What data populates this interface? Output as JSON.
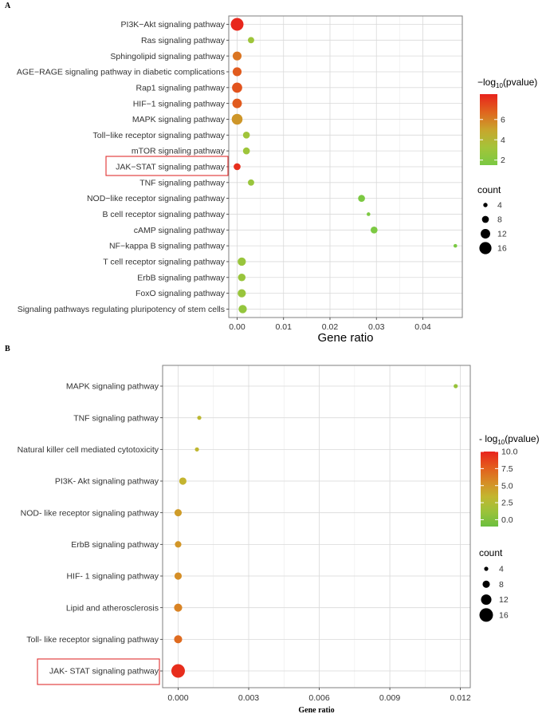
{
  "chart_data": [
    {
      "panel": "A",
      "type": "scatter",
      "xlabel": "Gene ratio",
      "xlim": [
        -0.0018,
        0.0485
      ],
      "xticks": [
        "0.00",
        "0.01",
        "0.02",
        "0.03",
        "0.04"
      ],
      "xtick_values": [
        0,
        0.01,
        0.02,
        0.03,
        0.04
      ],
      "grid": true,
      "legend_placement": "right",
      "highlighted": "JAK−STAT signaling pathway",
      "color_legend": {
        "title_prefix": "−log",
        "title_sub": "10",
        "title_suffix": "(pvalue)",
        "min": 1.5,
        "max": 8.5,
        "ticks": [
          "2",
          "4",
          "6"
        ],
        "tick_values": [
          2,
          4,
          6
        ],
        "colors": [
          "#7ac943",
          "#a4c439",
          "#c9a52c",
          "#e0641e",
          "#e8231c"
        ]
      },
      "size_legend": {
        "title": "count",
        "values": [
          4,
          8,
          12,
          16
        ],
        "labels": [
          "4",
          "8",
          "12",
          "16"
        ]
      },
      "points": [
        {
          "term": "PI3K−Akt signaling pathway",
          "ratio": 0.0,
          "count": 17,
          "neglog10p": 8.4
        },
        {
          "term": "Ras signaling pathway",
          "ratio": 0.003,
          "count": 7,
          "neglog10p": 3.0
        },
        {
          "term": "Sphingolipid signaling pathway",
          "ratio": 0.0,
          "count": 11,
          "neglog10p": 6.3
        },
        {
          "term": "AGE−RAGE signaling pathway in diabetic complications",
          "ratio": 0.0,
          "count": 11,
          "neglog10p": 7.0
        },
        {
          "term": "Rap1 signaling pathway",
          "ratio": 0.0,
          "count": 13,
          "neglog10p": 7.2
        },
        {
          "term": "HIF−1 signaling pathway",
          "ratio": 0.0,
          "count": 12,
          "neglog10p": 7.0
        },
        {
          "term": "MAPK signaling pathway",
          "ratio": 0.0,
          "count": 14,
          "neglog10p": 5.4
        },
        {
          "term": "Toll−like receptor signaling pathway",
          "ratio": 0.002,
          "count": 8,
          "neglog10p": 3.1
        },
        {
          "term": "mTOR signaling pathway",
          "ratio": 0.002,
          "count": 8,
          "neglog10p": 3.0
        },
        {
          "term": "JAK−STAT signaling pathway",
          "ratio": 0.0,
          "count": 8,
          "neglog10p": 8.2
        },
        {
          "term": "TNF signaling pathway",
          "ratio": 0.003,
          "count": 7,
          "neglog10p": 2.8
        },
        {
          "term": "NOD−like receptor signaling pathway",
          "ratio": 0.0268,
          "count": 8,
          "neglog10p": 1.6
        },
        {
          "term": "B cell receptor signaling pathway",
          "ratio": 0.0283,
          "count": 3,
          "neglog10p": 1.6
        },
        {
          "term": "cAMP signaling pathway",
          "ratio": 0.0295,
          "count": 8,
          "neglog10p": 1.6
        },
        {
          "term": "NF−kappa B signaling pathway",
          "ratio": 0.047,
          "count": 3,
          "neglog10p": 1.5
        },
        {
          "term": "T cell receptor signaling pathway",
          "ratio": 0.001,
          "count": 10,
          "neglog10p": 2.8
        },
        {
          "term": "ErbB signaling pathway",
          "ratio": 0.001,
          "count": 9,
          "neglog10p": 2.8
        },
        {
          "term": "FoxO signaling pathway",
          "ratio": 0.001,
          "count": 10,
          "neglog10p": 2.8
        },
        {
          "term": "Signaling pathways regulating pluripotency of stem cells",
          "ratio": 0.0012,
          "count": 10,
          "neglog10p": 2.6
        }
      ]
    },
    {
      "panel": "B",
      "type": "scatter",
      "xlabel": "Gene ratio",
      "xlim": [
        -0.00066,
        0.01242
      ],
      "xticks": [
        "0.000",
        "0.003",
        "0.006",
        "0.009",
        "0.012"
      ],
      "xtick_values": [
        0,
        0.003,
        0.006,
        0.009,
        0.012
      ],
      "grid": true,
      "legend_placement": "right",
      "highlighted": "JAK- STAT signaling pathway",
      "color_legend": {
        "title_prefix": "- log",
        "title_sub": "10",
        "title_suffix": "(pvalue)",
        "min": -1.0,
        "max": 10.0,
        "ticks": [
          "10.0",
          "7.5",
          "5.0",
          "2.5",
          "0.0"
        ],
        "tick_values": [
          10,
          7.5,
          5,
          2.5,
          0
        ],
        "colors": [
          "#6bbf3f",
          "#9bc23a",
          "#c3b62f",
          "#d78a25",
          "#e45a1d",
          "#e8231c"
        ]
      },
      "size_legend": {
        "title": "count",
        "values": [
          4,
          8,
          12,
          16
        ],
        "labels": [
          "4",
          "8",
          "12",
          "16"
        ]
      },
      "points": [
        {
          "term": "MAPK signaling pathway",
          "ratio": 0.0118,
          "count": 4,
          "neglog10p": 1.0
        },
        {
          "term": "TNF signaling pathway",
          "ratio": 0.0009,
          "count": 4,
          "neglog10p": 3.0
        },
        {
          "term": "Natural killer cell mediated cytotoxicity",
          "ratio": 0.0008,
          "count": 4,
          "neglog10p": 3.2
        },
        {
          "term": "PI3K- Akt signaling pathway",
          "ratio": 0.0002,
          "count": 8,
          "neglog10p": 3.5
        },
        {
          "term": "NOD- like receptor signaling pathway",
          "ratio": 0.0,
          "count": 8,
          "neglog10p": 4.7
        },
        {
          "term": "ErbB signaling pathway",
          "ratio": 0.0,
          "count": 7,
          "neglog10p": 5.0
        },
        {
          "term": "HIF- 1 signaling pathway",
          "ratio": 0.0,
          "count": 8,
          "neglog10p": 5.4
        },
        {
          "term": "Lipid and atherosclerosis",
          "ratio": 0.0,
          "count": 9,
          "neglog10p": 5.9
        },
        {
          "term": "Toll- like receptor signaling pathway",
          "ratio": 0.0,
          "count": 9,
          "neglog10p": 7.0
        },
        {
          "term": "JAK- STAT signaling pathway",
          "ratio": 0.0,
          "count": 16,
          "neglog10p": 9.6
        }
      ]
    }
  ]
}
